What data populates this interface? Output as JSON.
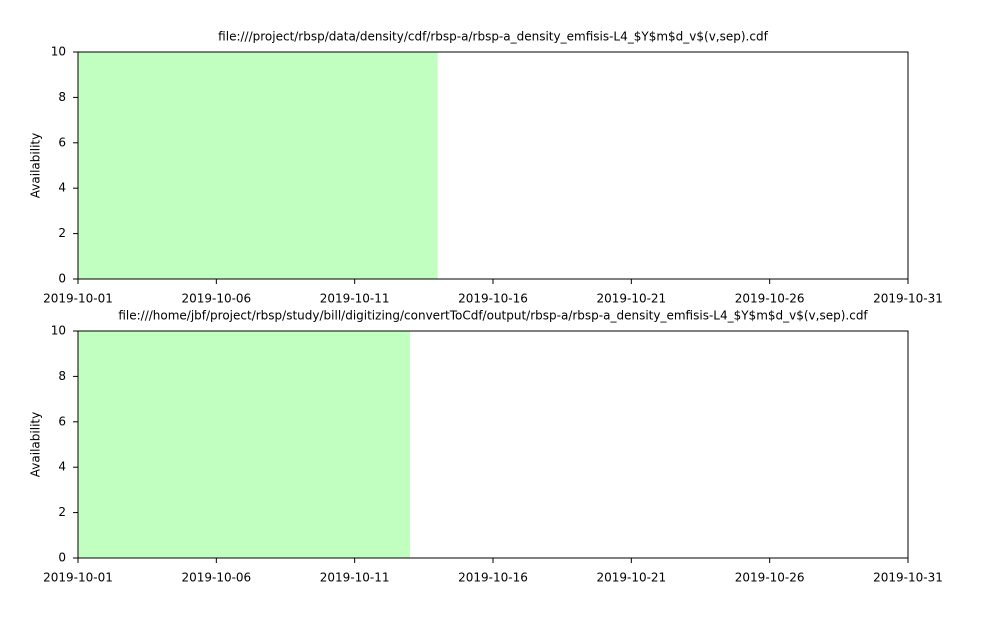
{
  "chart_data": [
    {
      "type": "area",
      "title": "file:///project/rbsp/data/density/cdf/rbsp-a/rbsp-a_density_emfisis-L4_$Y$m$d_v$(v,sep).cdf",
      "ylabel": "Availability",
      "x": [
        "2019-10-01",
        "2019-10-14"
      ],
      "values": [
        10,
        10
      ],
      "color": "#c0ffc0",
      "xlim": [
        "2019-10-01",
        "2019-10-31"
      ],
      "xticks": [
        "2019-10-01",
        "2019-10-06",
        "2019-10-11",
        "2019-10-16",
        "2019-10-21",
        "2019-10-26",
        "2019-10-31"
      ],
      "ylim": [
        0,
        10
      ],
      "yticks": [
        0,
        2,
        4,
        6,
        8,
        10
      ]
    },
    {
      "type": "area",
      "title": "file:///home/jbf/project/rbsp/study/bill/digitizing/convertToCdf/output/rbsp-a/rbsp-a_density_emfisis-L4_$Y$m$d_v$(v,sep).cdf",
      "ylabel": "Availability",
      "x": [
        "2019-10-01",
        "2019-10-13"
      ],
      "values": [
        10,
        10
      ],
      "color": "#c0ffc0",
      "xlim": [
        "2019-10-01",
        "2019-10-31"
      ],
      "xticks": [
        "2019-10-01",
        "2019-10-06",
        "2019-10-11",
        "2019-10-16",
        "2019-10-21",
        "2019-10-26",
        "2019-10-31"
      ],
      "ylim": [
        0,
        10
      ],
      "yticks": [
        0,
        2,
        4,
        6,
        8,
        10
      ]
    }
  ]
}
